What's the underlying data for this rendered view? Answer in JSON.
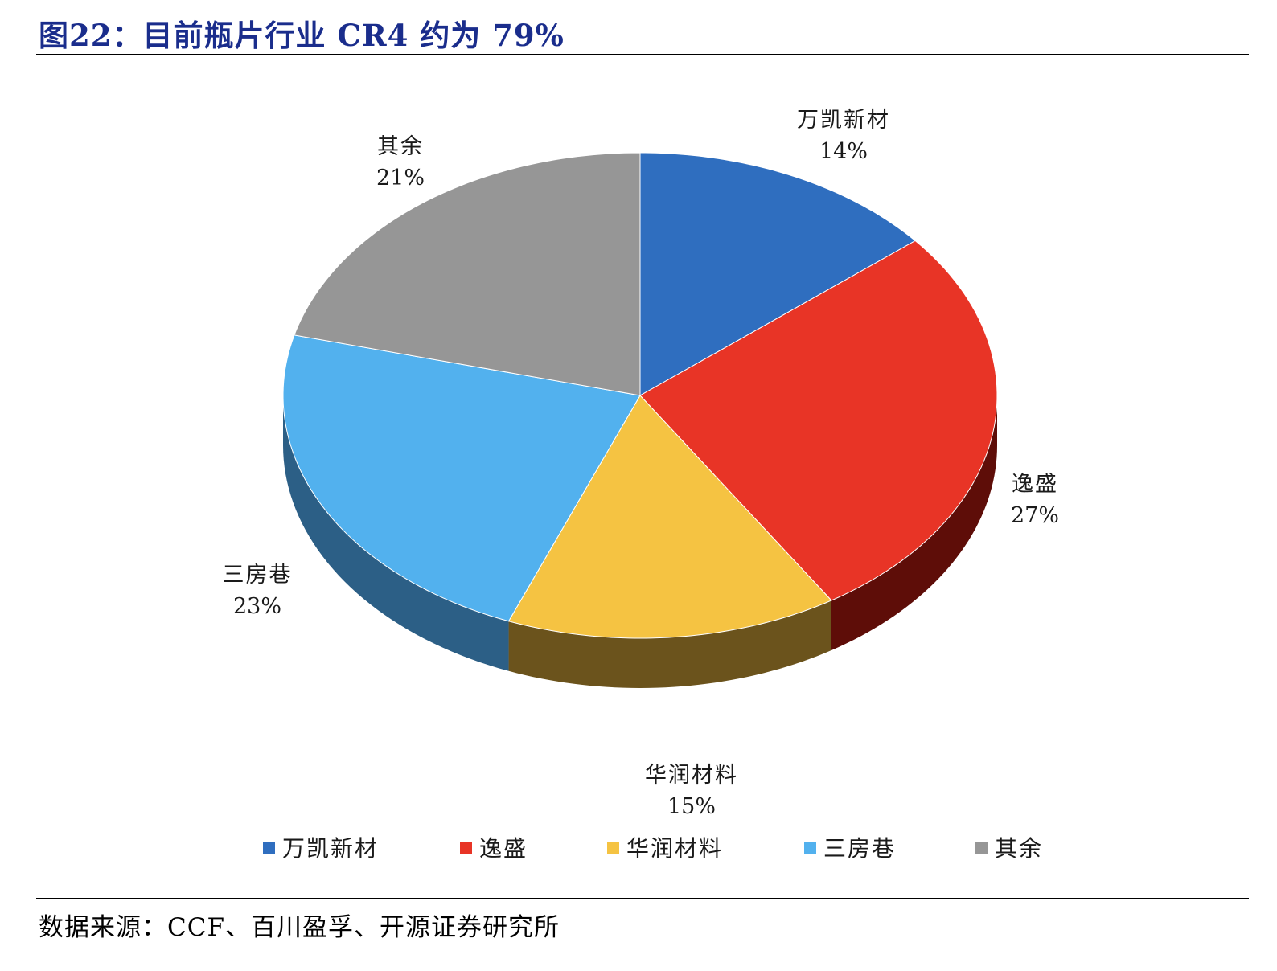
{
  "title": "图22：目前瓶片行业 CR4 约为 79%",
  "source": "数据来源：CCF、百川盈孚、开源证券研究所",
  "chart_data": {
    "type": "pie",
    "categories": [
      "万凯新材",
      "逸盛",
      "华润材料",
      "三房巷",
      "其余"
    ],
    "values": [
      14,
      27,
      15,
      23,
      21
    ],
    "value_labels": [
      "14%",
      "27%",
      "15%",
      "23%",
      "21%"
    ],
    "colors": [
      "#2f6ebf",
      "#e83426",
      "#f5c342",
      "#52b1ee",
      "#969696"
    ],
    "side_colors": [
      "#1d4a82",
      "#5e0d08",
      "#6b531c",
      "#2c5f86",
      "#555555"
    ],
    "legend_position": "bottom",
    "three_d": true
  },
  "legend": {
    "items": [
      {
        "label": "万凯新材",
        "color": "#2f6ebf"
      },
      {
        "label": "逸盛",
        "color": "#e83426"
      },
      {
        "label": "华润材料",
        "color": "#f5c342"
      },
      {
        "label": "三房巷",
        "color": "#52b1ee"
      },
      {
        "label": "其余",
        "color": "#969696"
      }
    ]
  }
}
